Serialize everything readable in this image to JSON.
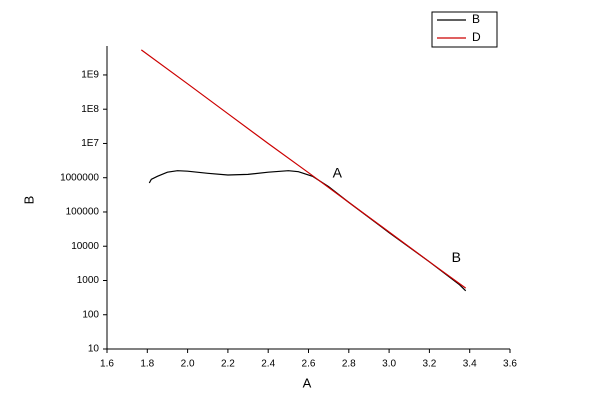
{
  "chart_data": {
    "type": "line",
    "x_label": "A",
    "y_label": "B",
    "log_y": true,
    "xlim": [
      1.6,
      3.6
    ],
    "xticks": [
      1.6,
      1.8,
      {
        "value": 2,
        "label": "2.0"
      },
      2.2,
      2.4,
      2.6,
      2.8,
      {
        "value": 3,
        "label": "3.0"
      },
      3.2,
      3.4,
      3.6
    ],
    "ylim": [
      10,
      7000000000
    ],
    "yticks": [
      10,
      100,
      1000,
      10000,
      100000,
      1000000,
      {
        "value": 10000000,
        "label": "1E7"
      },
      {
        "value": 100000000,
        "label": "1E8"
      },
      {
        "value": 1000000000,
        "label": "1E9"
      }
    ],
    "legend": "top-right",
    "series": [
      {
        "name": "B",
        "color": "#000000",
        "x": [
          1.81,
          1.82,
          1.85,
          1.9,
          1.95,
          2.0,
          2.1,
          2.2,
          2.3,
          2.4,
          2.5,
          2.55,
          2.62,
          2.7,
          2.8,
          3.0,
          3.2,
          3.35,
          3.38
        ],
        "values": [
          700000,
          900000,
          1100000,
          1450000,
          1600000,
          1550000,
          1350000,
          1200000,
          1250000,
          1450000,
          1600000,
          1500000,
          1100000,
          550000,
          190000,
          25000,
          3500,
          750,
          500
        ]
      },
      {
        "name": "D",
        "color": "#cc0000",
        "x": [
          1.77,
          2.0,
          2.2,
          2.4,
          2.6,
          2.8,
          3.0,
          3.2,
          3.38
        ],
        "values": [
          5400000000,
          550000000,
          74000000,
          10000000,
          1400000,
          190000,
          26000,
          3500,
          600
        ]
      }
    ],
    "annotations": [
      {
        "text": "A",
        "x": 2.72,
        "y": 1300000
      },
      {
        "text": "B",
        "x": 3.31,
        "y": 4500
      }
    ]
  }
}
